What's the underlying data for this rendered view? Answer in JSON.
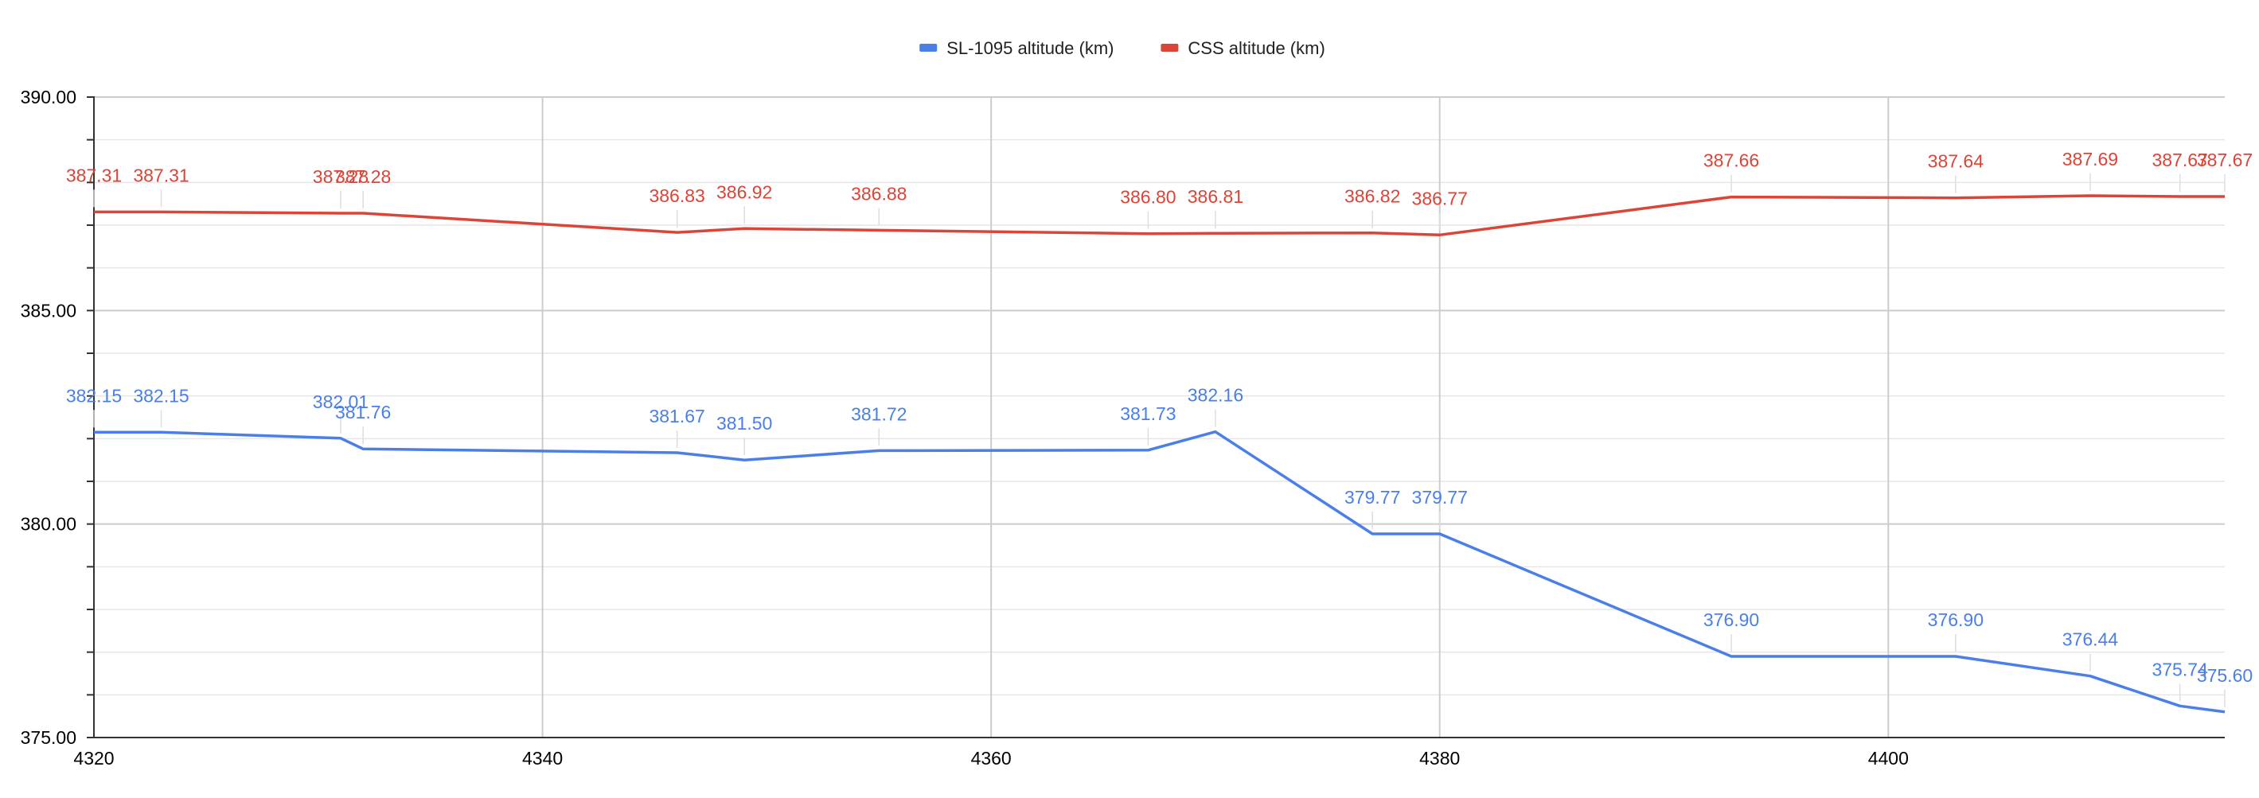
{
  "chart_data": {
    "type": "line",
    "title": "",
    "xlabel": "",
    "ylabel": "",
    "xlim": [
      4320,
      4415
    ],
    "ylim": [
      375,
      390
    ],
    "grid": true,
    "legend_position": "top",
    "x_ticks": [
      4320,
      4340,
      4360,
      4380,
      4400
    ],
    "x_tick_labels": [
      "4320",
      "4340",
      "4360",
      "4380",
      "4400"
    ],
    "y_ticks": [
      375,
      380,
      385,
      390
    ],
    "y_tick_labels": [
      "375.00",
      "380.00",
      "385.00",
      "390.00"
    ],
    "series": [
      {
        "name": "SL-1095 altitude (km)",
        "color": "#4a7fe8",
        "x": [
          4320,
          4323,
          4331,
          4332,
          4346,
          4349,
          4355,
          4367,
          4370,
          4377,
          4380,
          4393,
          4403,
          4409,
          4413,
          4415
        ],
        "values": [
          382.15,
          382.15,
          382.01,
          381.76,
          381.67,
          381.5,
          381.72,
          381.73,
          382.16,
          379.77,
          379.77,
          376.9,
          376.9,
          376.44,
          375.74,
          375.6
        ],
        "labels": [
          "382.15",
          "382.15",
          "382.01",
          "381.76",
          "381.67",
          "381.50",
          "381.72",
          "381.73",
          "382.16",
          "379.77",
          "379.77",
          "376.90",
          "376.90",
          "376.44",
          "375.74",
          "375.60"
        ]
      },
      {
        "name": "CSS altitude (km)",
        "color": "#db4437",
        "x": [
          4320,
          4323,
          4331,
          4332,
          4346,
          4349,
          4355,
          4367,
          4370,
          4377,
          4380,
          4393,
          4403,
          4409,
          4413,
          4415
        ],
        "values": [
          387.31,
          387.31,
          387.28,
          387.28,
          386.83,
          386.92,
          386.88,
          386.8,
          386.81,
          386.82,
          386.77,
          387.66,
          387.64,
          387.69,
          387.67,
          387.67
        ],
        "labels": [
          "387.31",
          "387.31",
          "387.28",
          "387.28",
          "386.83",
          "386.92",
          "386.88",
          "386.80",
          "386.81",
          "386.82",
          "386.77",
          "387.66",
          "387.64",
          "387.69",
          "387.67",
          "387.67"
        ]
      }
    ]
  }
}
